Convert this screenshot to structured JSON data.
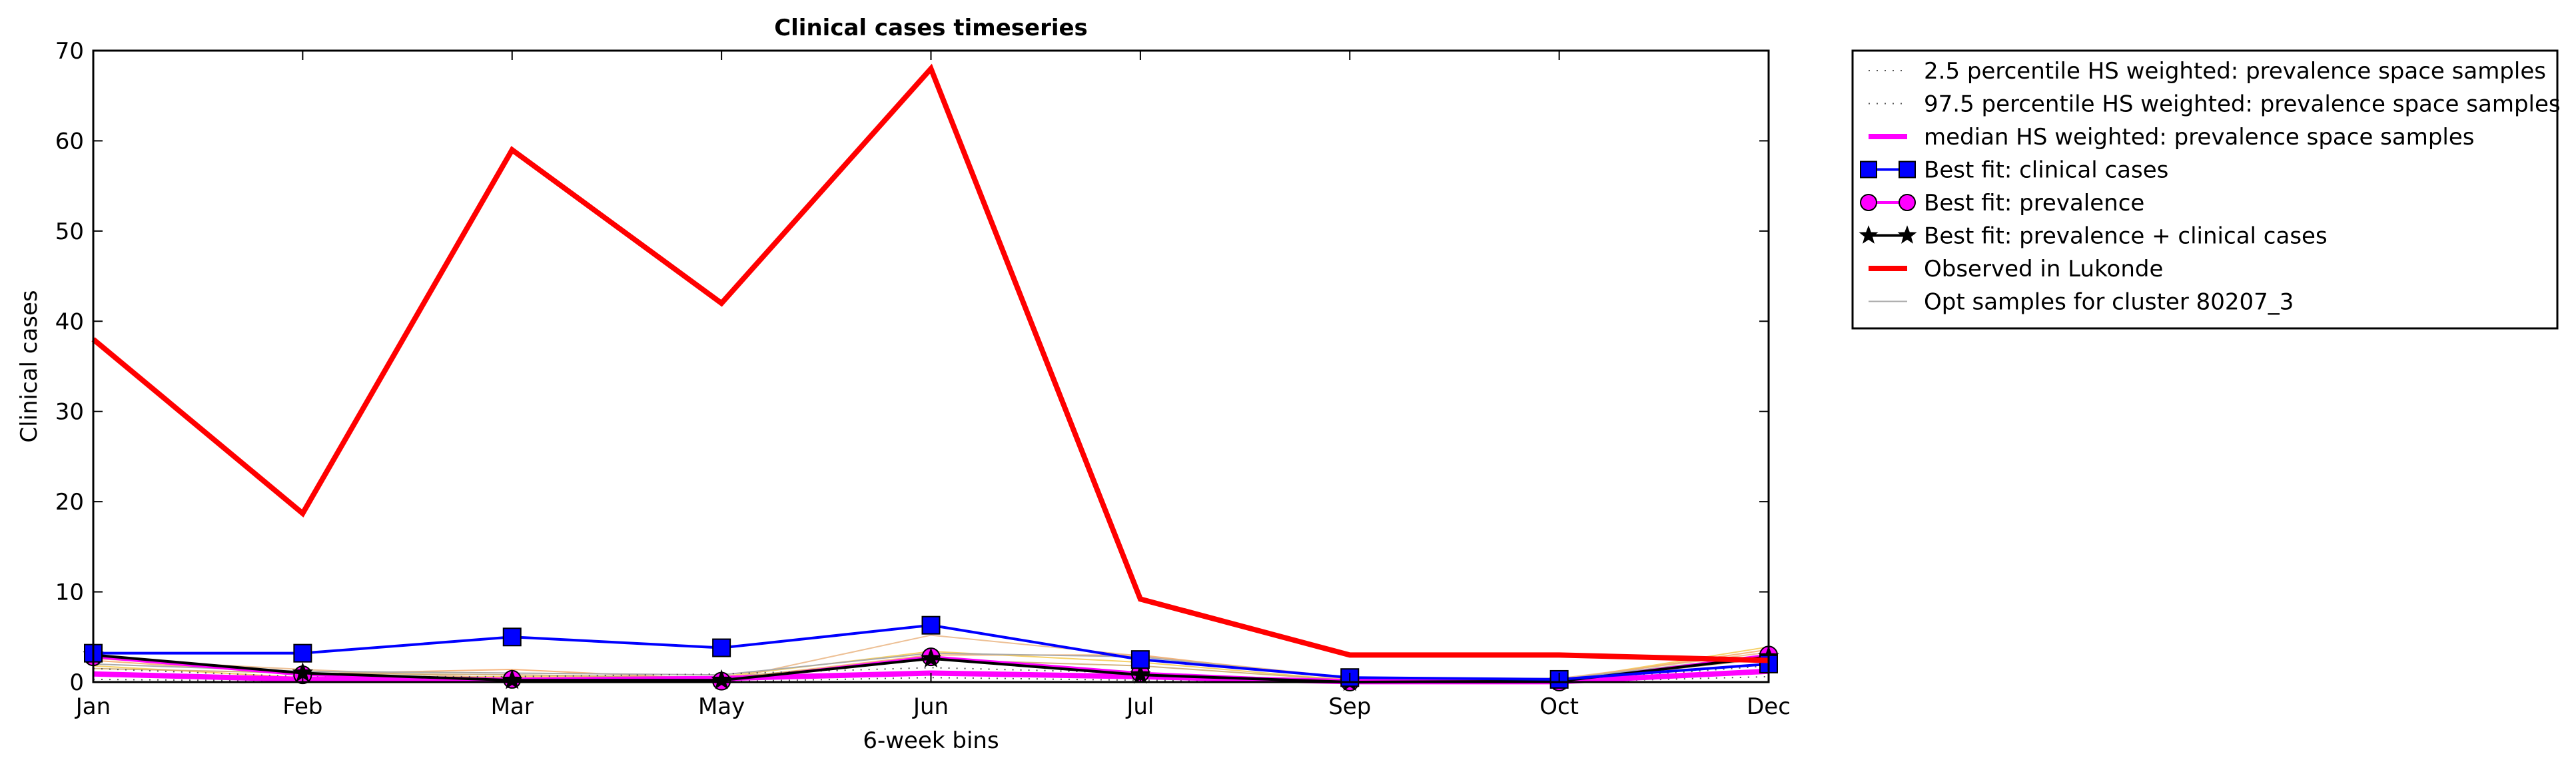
{
  "chart_data": {
    "type": "line",
    "title": "Clinical cases timeseries",
    "xlabel": "6-week bins",
    "ylabel": "Clinical cases",
    "categories": [
      "Jan",
      "Feb",
      "Mar",
      "May",
      "Jun",
      "Jul",
      "Sep",
      "Oct",
      "Dec"
    ],
    "ylim": [
      0,
      70
    ],
    "yticks": [
      0,
      10,
      20,
      30,
      40,
      50,
      60,
      70
    ],
    "grid": false,
    "legend_position": "outside-top-right",
    "series": [
      {
        "name": "2.5 percentile HS weighted: prevalence space samples",
        "color": "#555555",
        "style": "dotted",
        "values": [
          0.3,
          0.1,
          0.05,
          0.05,
          0.5,
          0.2,
          0.0,
          0.0,
          0.6
        ]
      },
      {
        "name": "97.5 percentile HS weighted: prevalence space samples",
        "color": "#555555",
        "style": "dotted",
        "values": [
          1.5,
          0.6,
          0.6,
          0.9,
          1.6,
          1.0,
          0.1,
          0.1,
          1.8
        ]
      },
      {
        "name": "median HS weighted: prevalence space samples",
        "color": "#ff00ff",
        "style": "thick",
        "values": [
          0.9,
          0.3,
          0.2,
          0.4,
          1.0,
          0.6,
          0.05,
          0.05,
          1.2
        ]
      },
      {
        "name": "Best fit: clinical cases",
        "color": "#0000ff",
        "edge": "#000000",
        "marker": "square",
        "values": [
          3.2,
          3.2,
          5.0,
          3.8,
          6.3,
          2.5,
          0.5,
          0.3,
          2.0
        ]
      },
      {
        "name": "Best fit: prevalence",
        "color": "#ff00ff",
        "edge": "#000000",
        "marker": "circle",
        "values": [
          2.8,
          0.8,
          0.3,
          0.1,
          2.8,
          1.0,
          0.0,
          0.0,
          3.0
        ]
      },
      {
        "name": "Best fit: prevalence + clinical cases",
        "color": "#000000",
        "edge": "#000000",
        "marker": "star",
        "values": [
          3.0,
          1.0,
          0.2,
          0.2,
          2.6,
          0.8,
          0.0,
          0.1,
          2.8
        ]
      },
      {
        "name": "Observed in Lukonde",
        "color": "#ff0000",
        "style": "thick",
        "values": [
          38,
          18.7,
          59,
          42,
          68,
          9.2,
          3.0,
          3.0,
          2.4
        ]
      },
      {
        "name": "Opt samples for cluster 80207_3",
        "color": "#aaaaaa",
        "style": "thin",
        "values": [
          2.0,
          1.2,
          1.0,
          0.8,
          3.2,
          2.8,
          0.4,
          0.3,
          3.0
        ]
      }
    ],
    "sample_curves": [
      {
        "color": "#f5a25d",
        "values": [
          2.4,
          0.9,
          1.4,
          0.3,
          3.0,
          3.0,
          0.3,
          0.2,
          3.6
        ]
      },
      {
        "color": "#f4c542",
        "values": [
          1.8,
          0.5,
          0.6,
          0.6,
          3.4,
          2.2,
          0.2,
          0.2,
          3.9
        ]
      },
      {
        "color": "#e8b07a",
        "values": [
          2.6,
          1.4,
          0.4,
          0.2,
          5.2,
          2.9,
          0.5,
          0.4,
          3.3
        ]
      },
      {
        "color": "#c8a060",
        "values": [
          1.5,
          1.0,
          0.8,
          0.5,
          2.5,
          1.8,
          0.2,
          0.1,
          2.6
        ]
      }
    ]
  }
}
